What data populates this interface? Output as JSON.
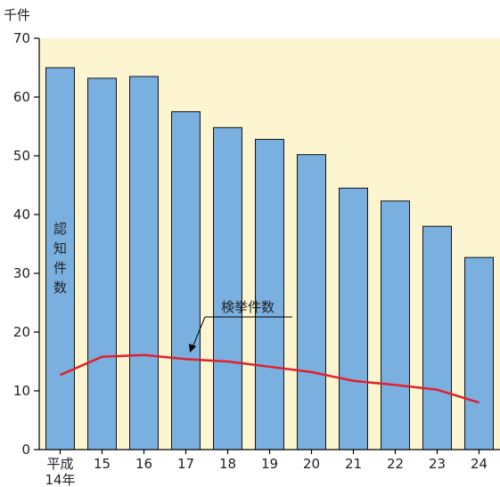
{
  "chart_data": {
    "type": "bar",
    "unit": "千件",
    "categories": [
      "平成14年",
      "15",
      "16",
      "17",
      "18",
      "19",
      "20",
      "21",
      "22",
      "23",
      "24"
    ],
    "first_category_lines": [
      "平成",
      "14年"
    ],
    "series": [
      {
        "name": "認知件数",
        "type": "bar",
        "color": "#7ab0e0",
        "values": [
          65.0,
          63.2,
          63.5,
          57.5,
          54.8,
          52.8,
          50.2,
          44.5,
          42.3,
          38.0,
          32.7
        ]
      },
      {
        "name": "検挙件数",
        "type": "line",
        "color": "#e0202c",
        "values": [
          12.7,
          15.8,
          16.1,
          15.4,
          15.0,
          14.1,
          13.2,
          11.7,
          11.0,
          10.2,
          8.0
        ]
      }
    ],
    "bar_label_chars": [
      "認",
      "知",
      "件",
      "数"
    ],
    "line_label": "検挙件数",
    "ylim": [
      0,
      70
    ],
    "yticks": [
      0,
      10,
      20,
      30,
      40,
      50,
      60,
      70
    ],
    "plot_background": "#fdf5cf",
    "grid": false
  }
}
